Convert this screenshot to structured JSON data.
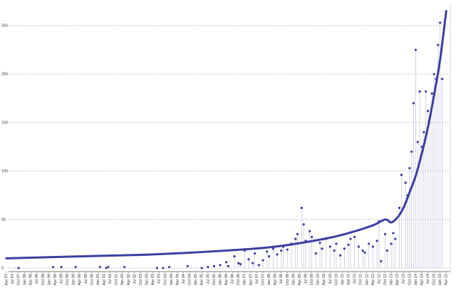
{
  "chart_data": {
    "type": "scatter",
    "xlim": [
      "1997-03",
      "2015-06"
    ],
    "ylim": [
      -3,
      272
    ],
    "yticks": [
      0,
      50,
      100,
      150,
      200,
      250
    ],
    "grid": true,
    "xticks": [
      {
        "value": "1997-04",
        "label": "Apr 97"
      },
      {
        "value": "1997-07",
        "label": "Jul 97"
      },
      {
        "value": "1997-10",
        "label": "Oct 97"
      },
      {
        "value": "1998-01",
        "label": "Jan 98"
      },
      {
        "value": "1998-04",
        "label": "Apr 98"
      },
      {
        "value": "1998-07",
        "label": "Jul 98"
      },
      {
        "value": "1998-10",
        "label": "Oct 98"
      },
      {
        "value": "1999-01",
        "label": "Jan 99"
      },
      {
        "value": "1999-04",
        "label": "Apr 99"
      },
      {
        "value": "1999-07",
        "label": "Jul 99"
      },
      {
        "value": "1999-10",
        "label": "Oct 99"
      },
      {
        "value": "2000-01",
        "label": "Jan 00"
      },
      {
        "value": "2000-04",
        "label": "Apr 00"
      },
      {
        "value": "2000-07",
        "label": "Jul 00"
      },
      {
        "value": "2000-10",
        "label": "Oct 00"
      },
      {
        "value": "2001-01",
        "label": "Jan 01"
      },
      {
        "value": "2001-04",
        "label": "Apr 01"
      },
      {
        "value": "2001-07",
        "label": "Jul 01"
      },
      {
        "value": "2001-10",
        "label": "Oct 01"
      },
      {
        "value": "2002-01",
        "label": "Jan 02"
      },
      {
        "value": "2002-04",
        "label": "Apr 02"
      },
      {
        "value": "2002-07",
        "label": "Jul 02"
      },
      {
        "value": "2002-10",
        "label": "Oct 02"
      },
      {
        "value": "2003-01",
        "label": "Jan 03"
      },
      {
        "value": "2003-04",
        "label": "Apr 03"
      },
      {
        "value": "2003-07",
        "label": "Jul 03"
      },
      {
        "value": "2003-10",
        "label": "Oct 03"
      },
      {
        "value": "2004-01",
        "label": "Jan 04"
      },
      {
        "value": "2004-04",
        "label": "Apr 04"
      },
      {
        "value": "2004-07",
        "label": "Jul 04"
      },
      {
        "value": "2004-10",
        "label": "Oct 04"
      },
      {
        "value": "2005-01",
        "label": "Jan 05"
      },
      {
        "value": "2005-04",
        "label": "Apr 05"
      },
      {
        "value": "2005-07",
        "label": "Jul 05"
      },
      {
        "value": "2005-10",
        "label": "Oct 05"
      },
      {
        "value": "2006-01",
        "label": "Jan 06"
      },
      {
        "value": "2006-04",
        "label": "Apr 06"
      },
      {
        "value": "2006-07",
        "label": "Jul 06"
      },
      {
        "value": "2006-10",
        "label": "Oct 06"
      },
      {
        "value": "2007-01",
        "label": "Jan 07"
      },
      {
        "value": "2007-04",
        "label": "Apr 07"
      },
      {
        "value": "2007-07",
        "label": "Jul 07"
      },
      {
        "value": "2007-10",
        "label": "Oct 07"
      },
      {
        "value": "2008-01",
        "label": "Jan 08"
      },
      {
        "value": "2008-04",
        "label": "Apr 08"
      },
      {
        "value": "2008-07",
        "label": "Jul 08"
      },
      {
        "value": "2008-10",
        "label": "Oct 08"
      },
      {
        "value": "2009-01",
        "label": "Jan 09"
      },
      {
        "value": "2009-04",
        "label": "Apr 09"
      },
      {
        "value": "2009-07",
        "label": "Jul 09"
      },
      {
        "value": "2009-10",
        "label": "Oct 09"
      },
      {
        "value": "2010-01",
        "label": "Jan 10"
      },
      {
        "value": "2010-04",
        "label": "Apr 10"
      },
      {
        "value": "2010-07",
        "label": "Jul 10"
      },
      {
        "value": "2010-10",
        "label": "Oct 10"
      },
      {
        "value": "2011-01",
        "label": "Jan 11"
      },
      {
        "value": "2011-04",
        "label": "Apr 11"
      },
      {
        "value": "2011-07",
        "label": "Jul 11"
      },
      {
        "value": "2011-10",
        "label": "Oct 11"
      },
      {
        "value": "2012-01",
        "label": "Jan 12"
      },
      {
        "value": "2012-04",
        "label": "Apr 12"
      },
      {
        "value": "2012-07",
        "label": "Jul 12"
      },
      {
        "value": "2012-10",
        "label": "Oct 12"
      },
      {
        "value": "2013-01",
        "label": "Jan 13"
      },
      {
        "value": "2013-04",
        "label": "Apr 13"
      },
      {
        "value": "2013-07",
        "label": "Jul 13"
      },
      {
        "value": "2013-10",
        "label": "Oct 13"
      },
      {
        "value": "2014-01",
        "label": "Jan 14"
      },
      {
        "value": "2014-04",
        "label": "Apr 14"
      },
      {
        "value": "2014-07",
        "label": "Jul 14"
      },
      {
        "value": "2014-10",
        "label": "Oct 14"
      },
      {
        "value": "2015-01",
        "label": "Jan 15"
      },
      {
        "value": "2015-04",
        "label": "Apr 15"
      }
    ],
    "series": [
      {
        "type": "scatter",
        "color": "#3a3d9c",
        "stem_color": "#c9c9e2",
        "x": [
          "1997-10",
          "1999-03",
          "1999-07",
          "2000-02",
          "2001-02",
          "2001-05",
          "2001-06",
          "2002-02",
          "2003-06",
          "2003-09",
          "2003-12",
          "2004-09",
          "2005-04",
          "2005-07",
          "2005-10",
          "2006-01",
          "2006-04",
          "2006-05",
          "2006-08",
          "2006-10",
          "2006-11",
          "2007-01",
          "2007-03",
          "2007-05",
          "2007-06",
          "2007-08",
          "2007-10",
          "2007-12",
          "2008-01",
          "2008-03",
          "2008-05",
          "2008-07",
          "2008-08",
          "2008-10",
          "2008-12",
          "2009-02",
          "2009-03",
          "2009-05",
          "2009-06",
          "2009-07",
          "2009-09",
          "2009-10",
          "2009-12",
          "2010-02",
          "2010-03",
          "2010-05",
          "2010-07",
          "2010-09",
          "2010-10",
          "2010-12",
          "2011-02",
          "2011-04",
          "2011-05",
          "2011-07",
          "2011-09",
          "2011-11",
          "2011-12",
          "2012-02",
          "2012-04",
          "2012-06",
          "2012-07",
          "2012-08",
          "2012-10",
          "2012-11",
          "2013-01",
          "2013-02",
          "2013-03",
          "2013-05",
          "2013-06",
          "2013-08",
          "2013-09",
          "2013-10",
          "2013-11",
          "2013-12",
          "2014-01",
          "2014-02",
          "2014-03",
          "2014-04",
          "2014-05",
          "2014-06",
          "2014-07",
          "2014-08",
          "2014-09",
          "2014-10",
          "2014-11",
          "2014-12",
          "2015-01",
          "2015-02"
        ],
        "values": [
          0,
          1,
          1,
          1,
          1,
          0,
          1,
          1,
          0,
          0,
          1,
          2,
          0,
          1,
          2,
          3,
          6,
          2,
          12,
          5,
          4,
          18,
          9,
          5,
          15,
          3,
          8,
          17,
          12,
          20,
          14,
          18,
          22,
          19,
          25,
          30,
          35,
          62,
          45,
          28,
          38,
          32,
          15,
          26,
          20,
          30,
          22,
          18,
          25,
          13,
          20,
          24,
          30,
          32,
          22,
          18,
          16,
          25,
          22,
          28,
          48,
          7,
          35,
          18,
          25,
          36,
          30,
          62,
          96,
          88,
          75,
          103,
          120,
          170,
          225,
          130,
          182,
          125,
          140,
          182,
          162,
          155,
          180,
          200,
          195,
          230,
          253,
          195
        ]
      },
      {
        "type": "line",
        "color": "#3b3fa0",
        "x": [
          "1997-04",
          "2000-04",
          "2003-04",
          "2006-04",
          "2008-04",
          "2010-04",
          "2011-04",
          "2012-04",
          "2012-10",
          "2013-01",
          "2013-04",
          "2013-07",
          "2013-10",
          "2014-01",
          "2014-04",
          "2014-07",
          "2014-10",
          "2015-01",
          "2015-04"
        ],
        "values": [
          10,
          12,
          14,
          18,
          22,
          30,
          36,
          44,
          50,
          47,
          52,
          62,
          78,
          95,
          118,
          145,
          178,
          215,
          265
        ]
      }
    ]
  }
}
